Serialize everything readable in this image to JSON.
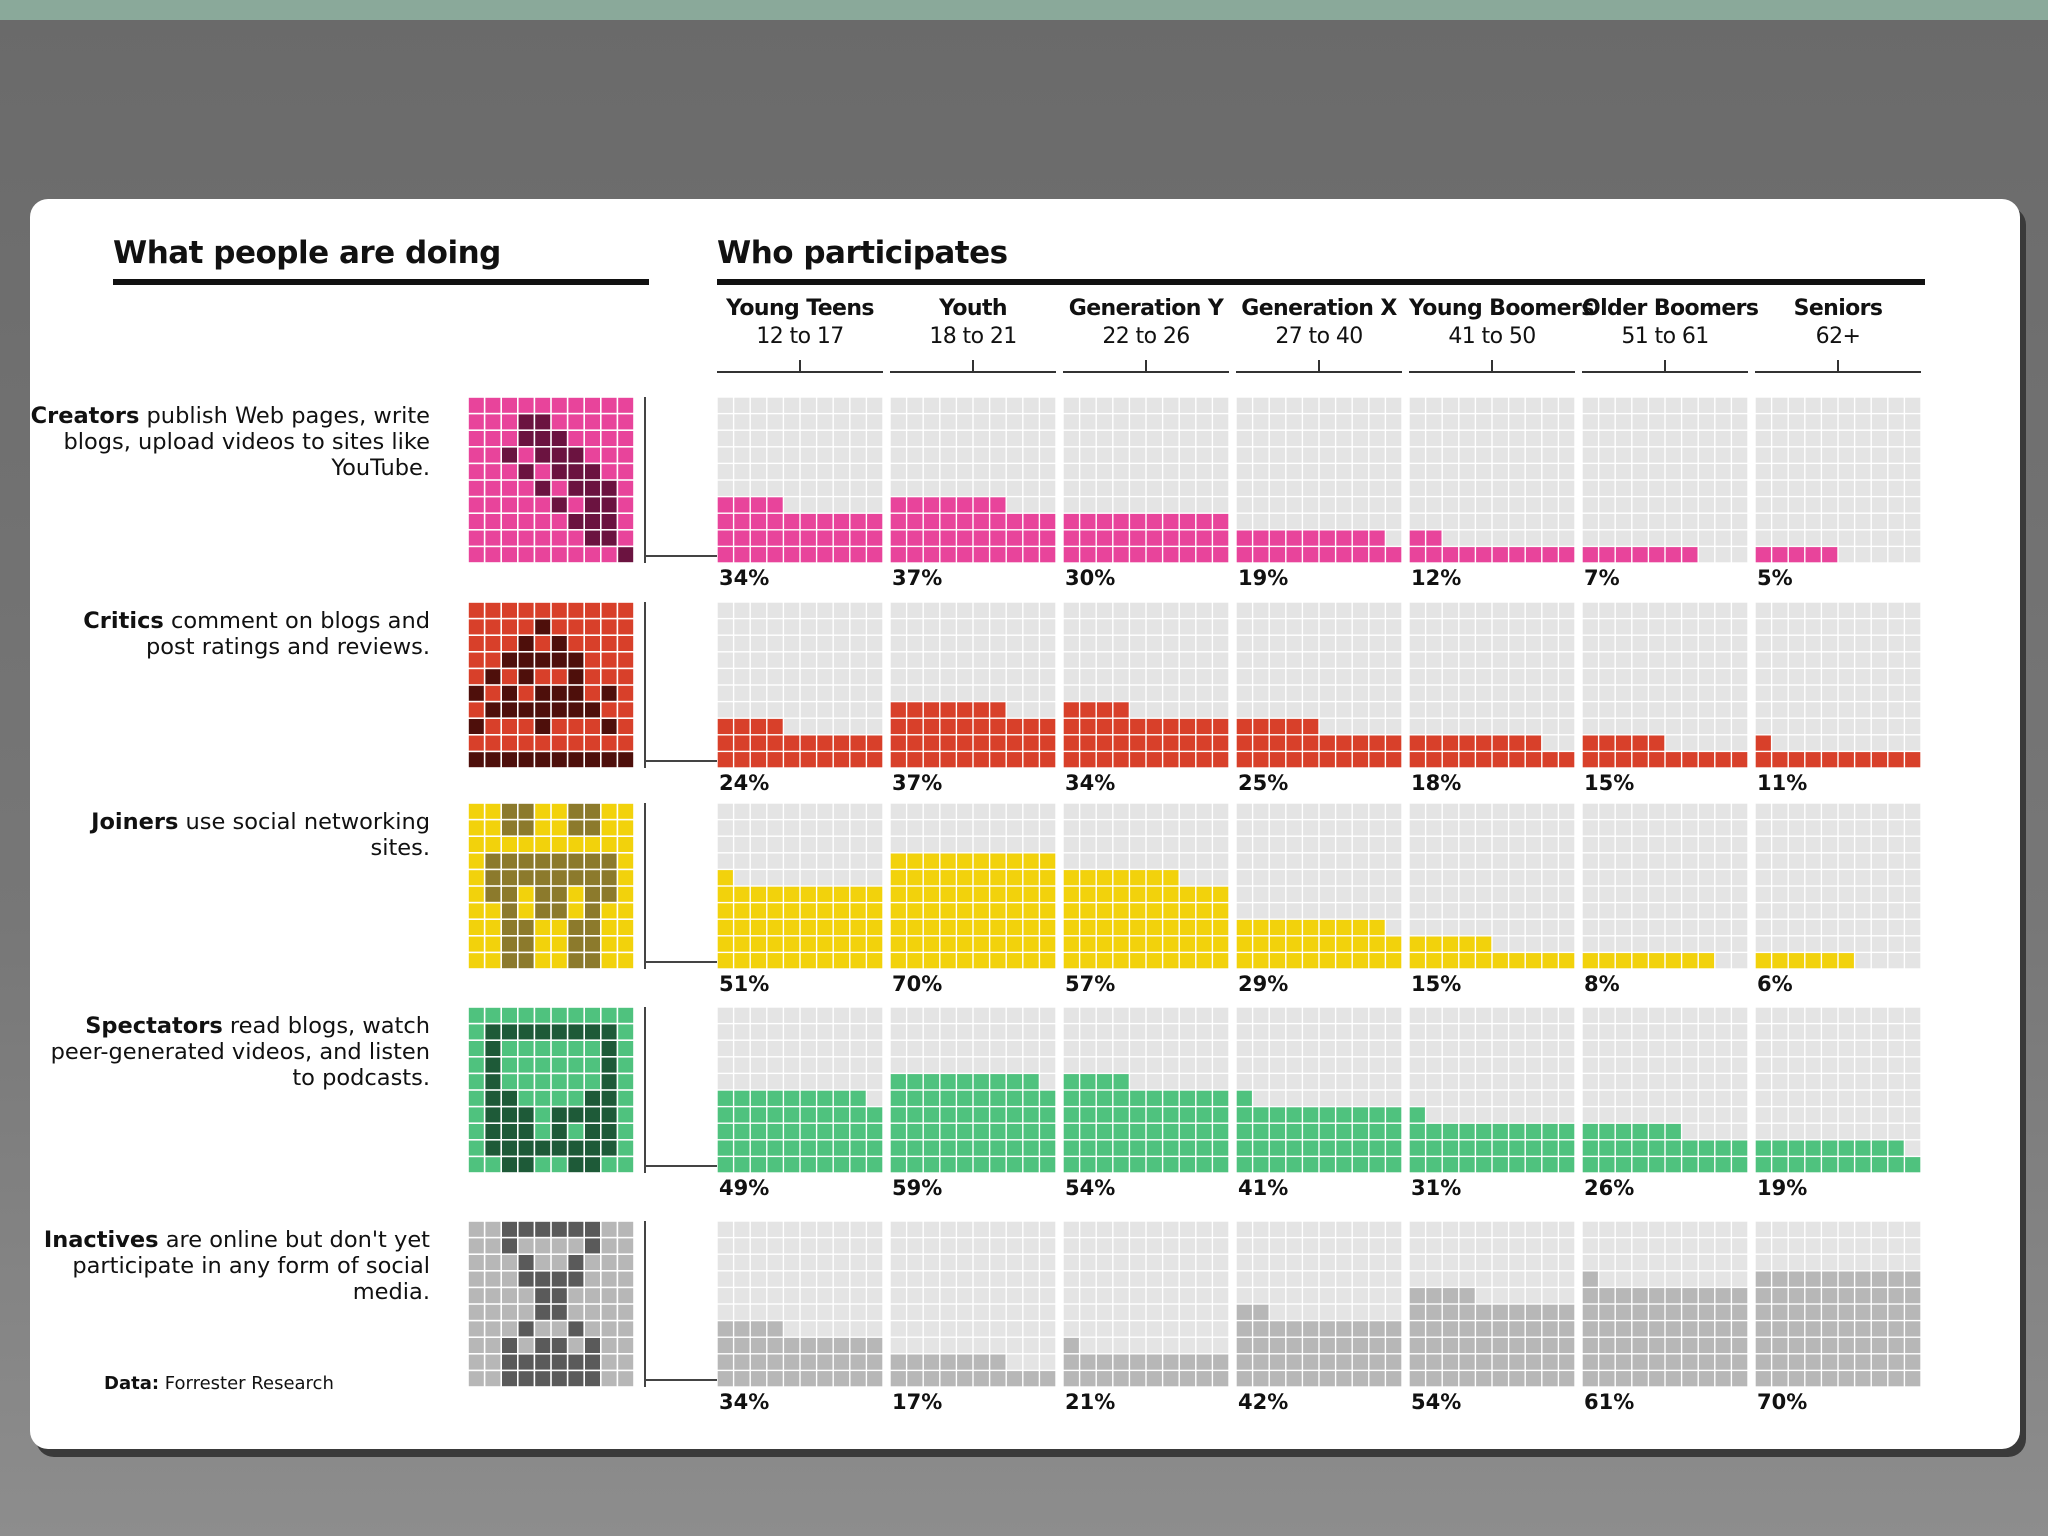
{
  "left_heading": "What people are doing",
  "right_heading": "Who participates",
  "source": {
    "label": "Data:",
    "text": "Forrester Research"
  },
  "colors": {
    "creators": "#e8449b",
    "creators_dark": "#6b1340",
    "critics": "#d8402a",
    "critics_dark": "#4e0f0b",
    "joiners": "#f2d20c",
    "joiners_dark": "#8c7a2c",
    "spectators": "#4fc27e",
    "spectators_dark": "#1e5a38",
    "inactives": "#b7b7b7",
    "inactives_dark": "#5a5a5a",
    "empty_cell": "#e4e4e4"
  },
  "chart_data": {
    "type": "table",
    "title": "Who participates",
    "categories": [
      {
        "name": "Young Teens",
        "range": "12 to 17"
      },
      {
        "name": "Youth",
        "range": "18 to 21"
      },
      {
        "name": "Generation Y",
        "range": "22 to 26"
      },
      {
        "name": "Generation X",
        "range": "27 to 40"
      },
      {
        "name": "Young Boomers",
        "range": "41 to 50"
      },
      {
        "name": "Older Boomers",
        "range": "51 to 61"
      },
      {
        "name": "Seniors",
        "range": "62+"
      }
    ],
    "series": [
      {
        "name": "Creators",
        "description": "publish Web pages, write blogs, upload videos to sites like YouTube.",
        "icon": "pencil-icon",
        "color_key": "creators",
        "values": [
          34,
          37,
          30,
          19,
          12,
          7,
          5
        ],
        "labels": [
          "34%",
          "37%",
          "30%",
          "19%",
          "12%",
          "7%",
          "5%"
        ]
      },
      {
        "name": "Critics",
        "description": "comment on blogs and post ratings and reviews.",
        "icon": "speech-bubble-icon",
        "color_key": "critics",
        "values": [
          24,
          37,
          34,
          25,
          18,
          15,
          11
        ],
        "labels": [
          "24%",
          "37%",
          "34%",
          "25%",
          "18%",
          "15%",
          "11%"
        ]
      },
      {
        "name": "Joiners",
        "description": "use social networking sites.",
        "icon": "people-icon",
        "color_key": "joiners",
        "values": [
          51,
          70,
          57,
          29,
          15,
          8,
          6
        ],
        "labels": [
          "51%",
          "70%",
          "57%",
          "29%",
          "15%",
          "8%",
          "6%"
        ]
      },
      {
        "name": "Spectators",
        "description": "read blogs, watch peer-generated videos, and listen to podcasts.",
        "icon": "headphones-icon",
        "color_key": "spectators",
        "values": [
          49,
          59,
          54,
          41,
          31,
          26,
          19
        ],
        "labels": [
          "49%",
          "59%",
          "54%",
          "41%",
          "31%",
          "26%",
          "19%"
        ]
      },
      {
        "name": "Inactives",
        "description": "are online but don't yet participate in any form of social media.",
        "icon": "hourglass-icon",
        "color_key": "inactives",
        "values": [
          34,
          17,
          21,
          42,
          54,
          61,
          70
        ],
        "labels": [
          "34%",
          "17%",
          "21%",
          "42%",
          "54%",
          "61%",
          "70%"
        ]
      }
    ],
    "ylim": [
      0,
      100
    ]
  }
}
